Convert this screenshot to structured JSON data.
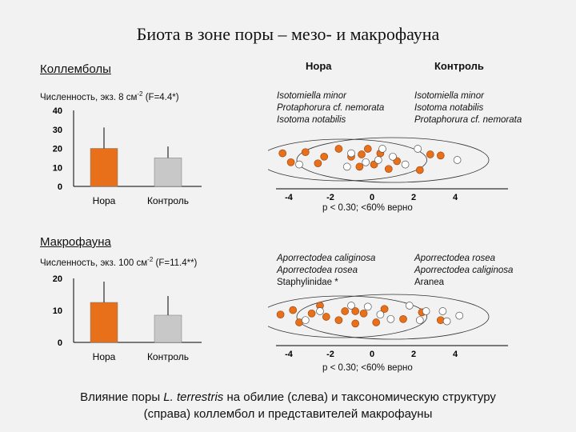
{
  "title": "Биота в зоне поры – мезо- и макрофауна",
  "colors": {
    "nora": "#e8701a",
    "control": "#c8c8c8",
    "nora_dot": "#e8701a",
    "control_dot": "#ffffff"
  },
  "sections": [
    {
      "heading": "Коллемболы",
      "subtitle": "Численность, экз. 8 см",
      "subtitle_sup": "-2",
      "subtitle_stat": "(F=4.4*)",
      "left_headers": {
        "nora": "Нора",
        "control": "Контроль"
      },
      "nora_species": [
        "Isotomiella minor",
        "Protaphorura cf. nemorata",
        "Isotoma notabilis"
      ],
      "control_species": [
        "Isotomiella minor",
        "Isotoma notabilis",
        "Protaphorura cf. nemorata"
      ],
      "ordination_ticks": [
        "-4",
        "-2",
        "0",
        "2",
        "4"
      ],
      "stat_text": "p < 0.30;  <60% верно"
    },
    {
      "heading": "Макрофауна",
      "subtitle": "Численность, экз. 100 см",
      "subtitle_sup": "-2",
      "subtitle_stat": "(F=11.4**)",
      "nora_species": [
        "Aporrectodea caliginosa",
        "Aporrectodea rosea",
        "Staphylinidae *"
      ],
      "control_species": [
        "Aporrectodea rosea",
        "Aporrectodea caliginosa",
        "Aranea"
      ],
      "ordination_ticks": [
        "-4",
        "-2",
        "0",
        "2",
        "4"
      ],
      "stat_text": "p < 0.30;  <60% верно"
    }
  ],
  "chart_data": [
    {
      "type": "bar",
      "title": "Коллемболы",
      "categories": [
        "Нора",
        "Контроль"
      ],
      "values": [
        20,
        15
      ],
      "error_upper": [
        31,
        21
      ],
      "yticks": [
        "40",
        "30",
        "20",
        "10",
        "0"
      ],
      "ylim": [
        0,
        40
      ]
    },
    {
      "type": "bar",
      "title": "Макрофауна",
      "categories": [
        "Нора",
        "Контроль"
      ],
      "values": [
        12.5,
        8.5
      ],
      "error_upper": [
        19,
        14.5
      ],
      "yticks": [
        "20",
        "10",
        "0"
      ],
      "ylim": [
        0,
        20
      ]
    }
  ],
  "ordination": [
    {
      "nora_points": [
        [
          -4.3,
          0.6
        ],
        [
          -3.9,
          -0.2
        ],
        [
          -3.2,
          0.7
        ],
        [
          -2.6,
          -0.3
        ],
        [
          -1.6,
          1.0
        ],
        [
          -1.0,
          0.3
        ],
        [
          -0.6,
          -0.6
        ],
        [
          -0.2,
          1.0
        ],
        [
          0.1,
          -0.4
        ],
        [
          0.4,
          0.6
        ],
        [
          0.8,
          -0.8
        ],
        [
          1.2,
          -0.1
        ],
        [
          2.3,
          -0.9
        ],
        [
          -2.3,
          0.3
        ],
        [
          -0.5,
          0.5
        ],
        [
          2.8,
          0.5
        ],
        [
          3.3,
          0.4
        ]
      ],
      "control_points": [
        [
          -3.5,
          -0.4
        ],
        [
          -1.2,
          -0.6
        ],
        [
          -1.0,
          0.6
        ],
        [
          -0.3,
          -0.2
        ],
        [
          0.5,
          1.0
        ],
        [
          1.0,
          0.3
        ],
        [
          1.6,
          -0.4
        ],
        [
          2.2,
          1.0
        ],
        [
          4.1,
          0.0
        ],
        [
          0.3,
          0.0
        ]
      ]
    },
    {
      "nora_points": [
        [
          -4.4,
          0.2
        ],
        [
          -3.8,
          0.6
        ],
        [
          -3.5,
          -0.5
        ],
        [
          -2.9,
          0.3
        ],
        [
          -2.5,
          1.0
        ],
        [
          -2.2,
          0.0
        ],
        [
          -1.6,
          -0.3
        ],
        [
          -1.3,
          0.5
        ],
        [
          -0.8,
          -0.6
        ],
        [
          -0.4,
          0.3
        ],
        [
          0.2,
          -0.5
        ],
        [
          0.6,
          0.7
        ],
        [
          1.5,
          -0.2
        ],
        [
          2.4,
          0.4
        ],
        [
          3.3,
          -0.3
        ],
        [
          -0.8,
          0.5
        ]
      ],
      "control_points": [
        [
          -3.2,
          -0.3
        ],
        [
          -2.5,
          0.5
        ],
        [
          -1.0,
          1.0
        ],
        [
          -0.2,
          0.9
        ],
        [
          0.4,
          0.2
        ],
        [
          0.9,
          -0.2
        ],
        [
          1.8,
          1.0
        ],
        [
          2.3,
          -0.3
        ],
        [
          2.6,
          0.5
        ],
        [
          3.4,
          0.5
        ],
        [
          3.6,
          -0.4
        ],
        [
          4.2,
          0.1
        ]
      ]
    }
  ],
  "caption_parts": {
    "line1_pre": "Влияние поры ",
    "line1_species": "L. terrestris",
    "line1_post": " на обилие (слева) и таксономическую структуру",
    "line2": "(справа) коллембол и представителей макрофауны"
  }
}
